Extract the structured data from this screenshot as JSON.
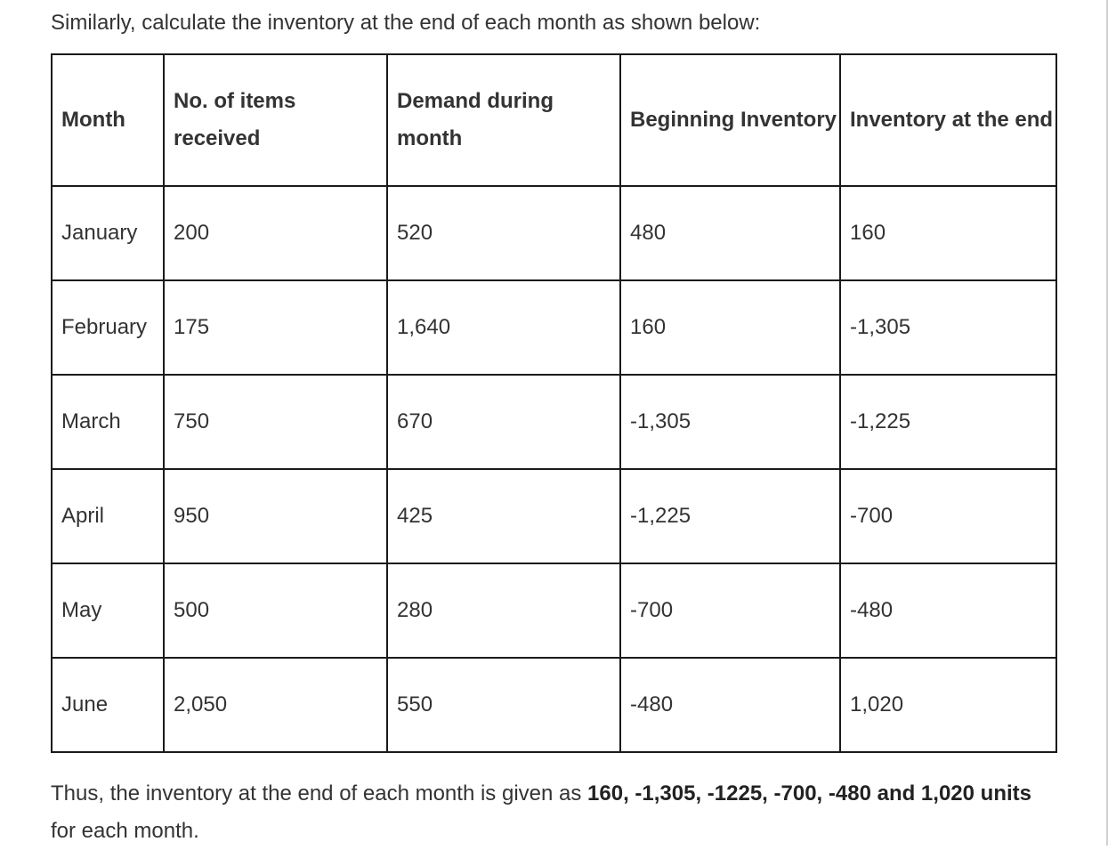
{
  "intro_text": "Similarly, calculate the inventory at the end of each month as shown below:",
  "table": {
    "headers": {
      "month": "Month",
      "received": "No. of items received",
      "demand": "Demand during month",
      "beginning": "Beginning Inventory",
      "end": "Inventory at the end"
    },
    "rows": [
      {
        "month": "January",
        "received": "200",
        "demand": "520",
        "beginning": "480",
        "end": "160"
      },
      {
        "month": "February",
        "received": "175",
        "demand": "1,640",
        "beginning": "160",
        "end": "-1,305"
      },
      {
        "month": "March",
        "received": "750",
        "demand": "670",
        "beginning": "-1,305",
        "end": "-1,225"
      },
      {
        "month": "April",
        "received": "950",
        "demand": "425",
        "beginning": "-1,225",
        "end": "-700"
      },
      {
        "month": "May",
        "received": "500",
        "demand": "280",
        "beginning": "-700",
        "end": "-480"
      },
      {
        "month": "June",
        "received": "2,050",
        "demand": "550",
        "beginning": "-480",
        "end": "1,020"
      }
    ]
  },
  "conclusion": {
    "prefix": "Thus, the inventory at the end of each month is given as ",
    "bold": "160, -1,305, -1225, -700, -480 and 1,020 units",
    "suffix": " for each month."
  }
}
